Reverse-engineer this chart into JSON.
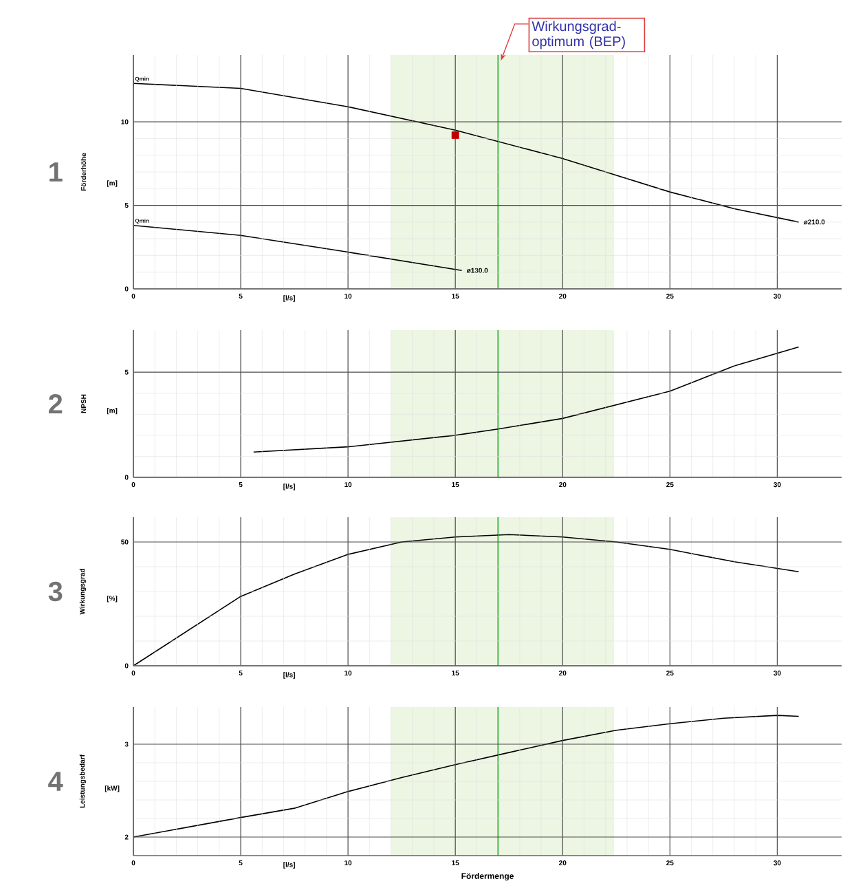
{
  "chart_data": [
    {
      "type": "line",
      "title": "1",
      "ylabel": "Förderhöhe",
      "annotations": [
        "[m]",
        "[l/s]",
        {
          "text": "Qmin",
          "x": 0,
          "y": 12.3
        },
        {
          "text": "Qmin",
          "x": 0,
          "y": 3.8
        }
      ],
      "series": [
        {
          "name": "ø210.0",
          "color": "#000000",
          "x": [
            0,
            5,
            10,
            15,
            20,
            25,
            28,
            31
          ],
          "values": [
            12.3,
            12.0,
            10.9,
            9.5,
            7.8,
            5.8,
            4.8,
            4.0
          ]
        },
        {
          "name": "ø130.0",
          "color": "#000000",
          "x": [
            0,
            5,
            10,
            15.3
          ],
          "values": [
            3.8,
            3.2,
            2.2,
            1.1
          ]
        },
        {
          "type": "scatter",
          "marker": "square",
          "color": "#c00000",
          "x": [
            15
          ],
          "values": [
            9.2
          ]
        }
      ],
      "xlim": [
        0,
        33
      ],
      "ylim": [
        0,
        14
      ],
      "xticks": [
        0,
        5,
        10,
        15,
        20,
        25,
        30
      ],
      "yticks": [
        0,
        5,
        10
      ],
      "grid": true,
      "bands": [
        {
          "axis": "x",
          "from": 12,
          "to": 22.4,
          "color": "#edf5e3"
        }
      ],
      "ref_lines": [
        {
          "axis": "x",
          "value": 17,
          "color": "#4cc04c",
          "label": "Wirkungsgrad-optimum (BEP)"
        }
      ]
    },
    {
      "type": "line",
      "title": "2",
      "ylabel": "NPSH",
      "annotations": [
        "[m]",
        "[l/s]"
      ],
      "series": [
        {
          "color": "#000000",
          "x": [
            5.6,
            10,
            15,
            17,
            20,
            25,
            28,
            31
          ],
          "values": [
            1.2,
            1.45,
            2.0,
            2.3,
            2.8,
            4.1,
            5.3,
            6.2
          ]
        }
      ],
      "xlim": [
        0,
        33
      ],
      "ylim": [
        0,
        7
      ],
      "xticks": [
        0,
        5,
        10,
        15,
        20,
        25,
        30
      ],
      "yticks": [
        0,
        5
      ],
      "grid": true,
      "bands": [
        {
          "axis": "x",
          "from": 12,
          "to": 22.4,
          "color": "#edf5e3"
        }
      ],
      "ref_lines": [
        {
          "axis": "x",
          "value": 17,
          "color": "#4cc04c"
        }
      ]
    },
    {
      "type": "line",
      "title": "3",
      "ylabel": "Wirkungsgrad",
      "annotations": [
        "[%]",
        "[l/s]"
      ],
      "series": [
        {
          "color": "#000000",
          "x": [
            0,
            2.5,
            5,
            7.5,
            10,
            12.5,
            15,
            17.5,
            20,
            22.5,
            25,
            28,
            31
          ],
          "values": [
            0,
            14,
            28,
            37,
            45,
            50,
            52,
            53,
            52,
            50,
            47,
            42,
            38
          ]
        }
      ],
      "xlim": [
        0,
        33
      ],
      "ylim": [
        0,
        60
      ],
      "xticks": [
        0,
        5,
        10,
        15,
        20,
        25,
        30
      ],
      "yticks": [
        0,
        50
      ],
      "grid": true,
      "bands": [
        {
          "axis": "x",
          "from": 12,
          "to": 22.4,
          "color": "#edf5e3"
        }
      ],
      "ref_lines": [
        {
          "axis": "x",
          "value": 17,
          "color": "#4cc04c"
        }
      ]
    },
    {
      "type": "line",
      "title": "4",
      "ylabel": "Leistungsbedarf",
      "xlabel": "Fördermenge",
      "annotations": [
        "[kW]",
        "[l/s]"
      ],
      "series": [
        {
          "color": "#000000",
          "x": [
            0,
            5,
            7.5,
            10,
            12.5,
            15,
            17.5,
            20,
            22.5,
            25,
            27.5,
            30,
            31
          ],
          "values": [
            2.0,
            2.21,
            2.31,
            2.49,
            2.64,
            2.78,
            2.91,
            3.04,
            3.15,
            3.22,
            3.28,
            3.31,
            3.3
          ]
        }
      ],
      "xlim": [
        0,
        33
      ],
      "ylim": [
        1.8,
        3.4
      ],
      "xticks": [
        0,
        5,
        10,
        15,
        20,
        25,
        30
      ],
      "yticks": [
        2,
        3
      ],
      "grid": true,
      "bands": [
        {
          "axis": "x",
          "from": 12,
          "to": 22.4,
          "color": "#edf5e3"
        }
      ],
      "ref_lines": [
        {
          "axis": "x",
          "value": 17,
          "color": "#4cc04c"
        }
      ]
    }
  ]
}
